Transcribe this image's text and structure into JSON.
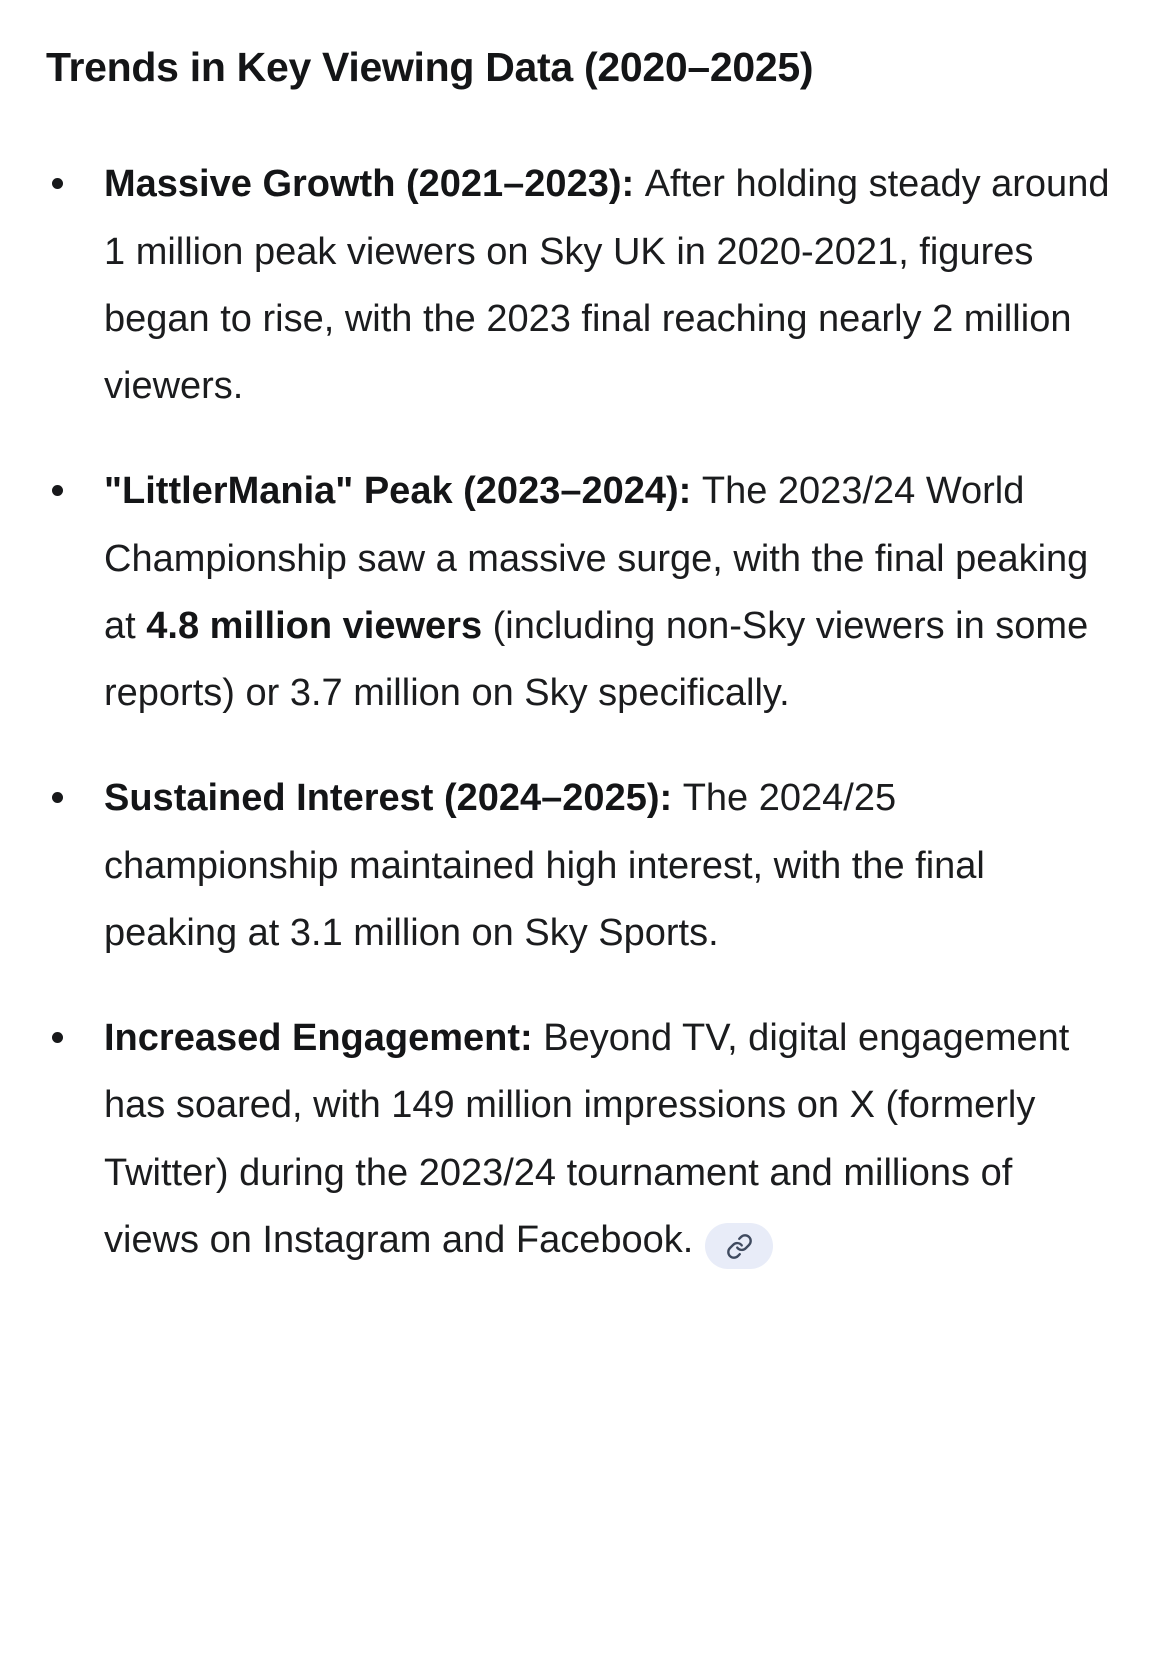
{
  "page": {
    "title": "Trends in Key Viewing Data (2020–2025)"
  },
  "colors": {
    "text": "#1b1c1e",
    "heading": "#141517",
    "citation_badge_background": "#e8ecf8",
    "citation_icon": "#3f4a5f"
  },
  "citation_badge": {
    "icon": "link-icon"
  },
  "bullets": [
    {
      "has_citation": false,
      "segments": [
        {
          "bold": true,
          "text": "Massive Growth (2021–2023): "
        },
        {
          "bold": false,
          "text": "After holding steady around 1 million peak viewers on Sky UK in 2020-2021, figures began to rise, with the 2023 final reaching nearly 2 million viewers."
        }
      ]
    },
    {
      "has_citation": false,
      "segments": [
        {
          "bold": true,
          "text": "\"LittlerMania\" Peak (2023–2024): "
        },
        {
          "bold": false,
          "text": "The 2023/24 World Championship saw a massive surge, with the final peaking at "
        },
        {
          "bold": true,
          "text": "4.8 million viewers"
        },
        {
          "bold": false,
          "text": " (including non-Sky viewers in some reports) or 3.7 million on Sky specifically."
        }
      ]
    },
    {
      "has_citation": false,
      "segments": [
        {
          "bold": true,
          "text": "Sustained Interest (2024–2025): "
        },
        {
          "bold": false,
          "text": "The 2024/25 championship maintained high interest, with the final peaking at 3.1 million on Sky Sports."
        }
      ]
    },
    {
      "has_citation": true,
      "segments": [
        {
          "bold": true,
          "text": "Increased Engagement: "
        },
        {
          "bold": false,
          "text": "Beyond TV, digital engagement has soared, with 149 million impressions on X (formerly Twitter) during the 2023/24 tournament and millions of views on Instagram and Facebook."
        }
      ]
    }
  ]
}
